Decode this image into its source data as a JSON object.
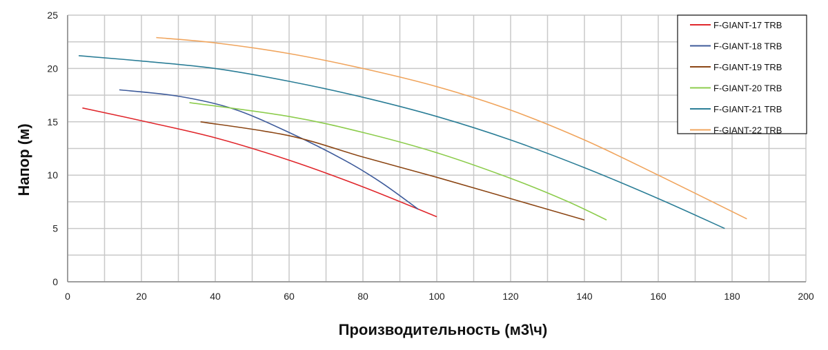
{
  "chart_data": {
    "type": "line",
    "xlabel": "Производительность (м3\\ч)",
    "ylabel": "Напор (м)",
    "xlim": [
      0,
      200
    ],
    "ylim": [
      0,
      25
    ],
    "xticks": [
      "0",
      "20",
      "40",
      "60",
      "80",
      "100",
      "120",
      "140",
      "160",
      "180",
      "200"
    ],
    "yticks": [
      "0",
      "5",
      "10",
      "15",
      "20",
      "25"
    ],
    "grid": true,
    "legend_position": "top-right",
    "series": [
      {
        "name": "F-GIANT-17 TRB",
        "color": "#e0262b",
        "points": [
          [
            4,
            16.3
          ],
          [
            20,
            15.1
          ],
          [
            40,
            13.5
          ],
          [
            60,
            11.4
          ],
          [
            80,
            8.9
          ],
          [
            100,
            6.1
          ]
        ]
      },
      {
        "name": "F-GIANT-18 TRB",
        "color": "#3d5a9a",
        "points": [
          [
            14,
            18.0
          ],
          [
            30,
            17.4
          ],
          [
            45,
            16.2
          ],
          [
            60,
            14.0
          ],
          [
            75,
            11.4
          ],
          [
            85,
            9.3
          ],
          [
            95,
            6.8
          ]
        ]
      },
      {
        "name": "F-GIANT-19 TRB",
        "color": "#8b4513",
        "points": [
          [
            36,
            15.0
          ],
          [
            60,
            13.7
          ],
          [
            80,
            11.7
          ],
          [
            100,
            9.8
          ],
          [
            120,
            7.8
          ],
          [
            140,
            5.8
          ]
        ]
      },
      {
        "name": "F-GIANT-20 TRB",
        "color": "#8ccc4c",
        "points": [
          [
            33,
            16.8
          ],
          [
            60,
            15.5
          ],
          [
            80,
            14.0
          ],
          [
            100,
            12.1
          ],
          [
            120,
            9.7
          ],
          [
            135,
            7.6
          ],
          [
            146,
            5.8
          ]
        ]
      },
      {
        "name": "F-GIANT-21 TRB",
        "color": "#2a7d96",
        "points": [
          [
            3,
            21.2
          ],
          [
            20,
            20.7
          ],
          [
            40,
            20.0
          ],
          [
            60,
            18.8
          ],
          [
            80,
            17.3
          ],
          [
            100,
            15.5
          ],
          [
            120,
            13.3
          ],
          [
            140,
            10.7
          ],
          [
            160,
            7.8
          ],
          [
            178,
            5.0
          ]
        ]
      },
      {
        "name": "F-GIANT-22 TRB",
        "color": "#f0a45c",
        "points": [
          [
            24,
            22.9
          ],
          [
            40,
            22.4
          ],
          [
            60,
            21.4
          ],
          [
            80,
            20.0
          ],
          [
            100,
            18.3
          ],
          [
            120,
            16.1
          ],
          [
            140,
            13.3
          ],
          [
            160,
            10.0
          ],
          [
            184,
            5.9
          ]
        ]
      }
    ]
  }
}
